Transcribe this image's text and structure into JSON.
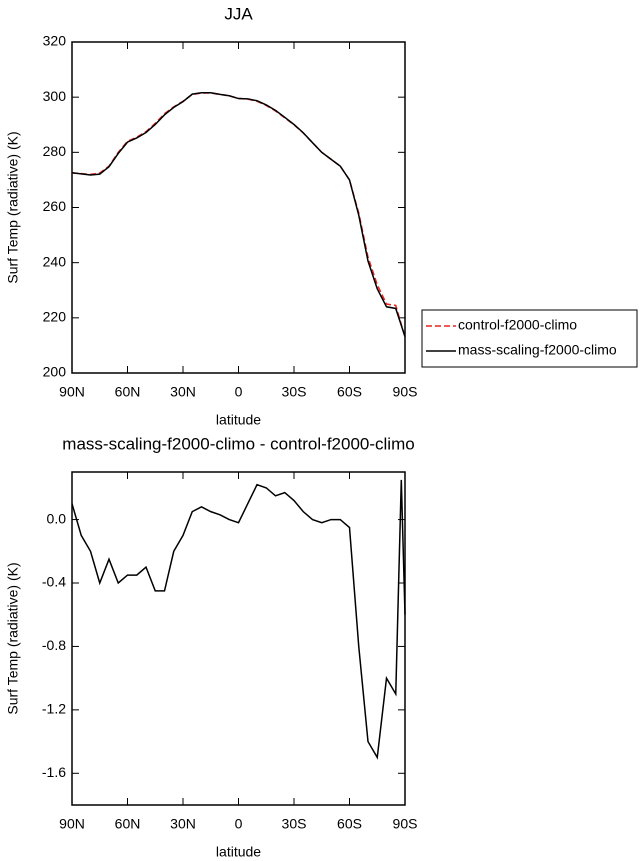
{
  "chart_data": [
    {
      "type": "line",
      "title": "JJA",
      "xlabel": "latitude",
      "ylabel": "Surf Temp (radiative) (K)",
      "x": [
        90,
        85,
        80,
        75,
        70,
        65,
        60,
        55,
        50,
        45,
        40,
        35,
        30,
        25,
        20,
        15,
        10,
        5,
        0,
        -5,
        -10,
        -15,
        -20,
        -25,
        -30,
        -35,
        -40,
        -45,
        -50,
        -55,
        -60,
        -65,
        -70,
        -75,
        -80,
        -85,
        -90
      ],
      "series": [
        {
          "name": "control-f2000-climo",
          "color": "#e8231f",
          "dash": true,
          "values": [
            272.5,
            272.3,
            272,
            272.5,
            275,
            280,
            284,
            285.5,
            287.5,
            290.5,
            294,
            296.5,
            298.5,
            301,
            301.5,
            301.5,
            301,
            300.5,
            299.5,
            299.3,
            298.5,
            297,
            295,
            292.5,
            290,
            287,
            283.5,
            280,
            277.5,
            275,
            270,
            258,
            242,
            232,
            225,
            224.5,
            213
          ]
        },
        {
          "name": "mass-scaling-f2000-climo",
          "color": "#000000",
          "dash": false,
          "values": [
            272.6,
            272.2,
            271.8,
            272.1,
            274.8,
            279.6,
            283.7,
            285.2,
            287.2,
            290.1,
            293.6,
            296.3,
            298.4,
            301.1,
            301.6,
            301.6,
            301,
            300.5,
            299.5,
            299.4,
            298.7,
            297.2,
            295.2,
            292.7,
            290.1,
            287.1,
            283.5,
            280,
            277.5,
            275,
            270,
            257.2,
            240.6,
            230.5,
            224,
            223.4,
            213.2
          ]
        }
      ],
      "xlim": [
        90,
        -90
      ],
      "xticks": [
        {
          "value": 90,
          "label": "90N"
        },
        {
          "value": 60,
          "label": "60N"
        },
        {
          "value": 30,
          "label": "30N"
        },
        0,
        {
          "value": -30,
          "label": "30S"
        },
        {
          "value": -60,
          "label": "60S"
        },
        {
          "value": -90,
          "label": "90S"
        }
      ],
      "ylim": [
        200,
        320
      ],
      "yticks": [
        200,
        220,
        240,
        260,
        280,
        300,
        320
      ],
      "legend": "right"
    },
    {
      "type": "line",
      "title": "mass-scaling-f2000-climo - control-f2000-climo",
      "xlabel": "latitude",
      "ylabel": "Surf Temp (radiative) (K)",
      "x": [
        90,
        85,
        80,
        75,
        70,
        65,
        60,
        55,
        50,
        45,
        40,
        35,
        30,
        25,
        20,
        15,
        10,
        5,
        0,
        -5,
        -10,
        -15,
        -20,
        -25,
        -30,
        -35,
        -40,
        -45,
        -50,
        -55,
        -60,
        -65,
        -70,
        -75,
        -80,
        -85,
        -88,
        -90
      ],
      "color": "#000000",
      "values": [
        0.1,
        -0.1,
        -0.2,
        -0.4,
        -0.25,
        -0.4,
        -0.35,
        -0.35,
        -0.3,
        -0.45,
        -0.45,
        -0.2,
        -0.1,
        0.05,
        0.08,
        0.05,
        0.03,
        0,
        -0.02,
        0.1,
        0.22,
        0.2,
        0.15,
        0.17,
        0.12,
        0.05,
        0,
        -0.02,
        0,
        0,
        -0.05,
        -0.8,
        -1.4,
        -1.5,
        -1.0,
        -1.1,
        0.25,
        -0.6
      ],
      "xlim": [
        90,
        -90
      ],
      "xticks": [
        {
          "value": 90,
          "label": "90N"
        },
        {
          "value": 60,
          "label": "60N"
        },
        {
          "value": 30,
          "label": "30N"
        },
        0,
        {
          "value": -30,
          "label": "30S"
        },
        {
          "value": -60,
          "label": "60S"
        },
        {
          "value": -90,
          "label": "90S"
        }
      ],
      "ylim": [
        -1.8,
        0.3
      ],
      "yticks": [
        {
          "value": -1.6,
          "label": "-1.6"
        },
        {
          "value": -1.2,
          "label": "-1.2"
        },
        {
          "value": -0.8,
          "label": "-0.8"
        },
        -0.4,
        {
          "value": 0,
          "label": "0.0"
        }
      ]
    }
  ]
}
